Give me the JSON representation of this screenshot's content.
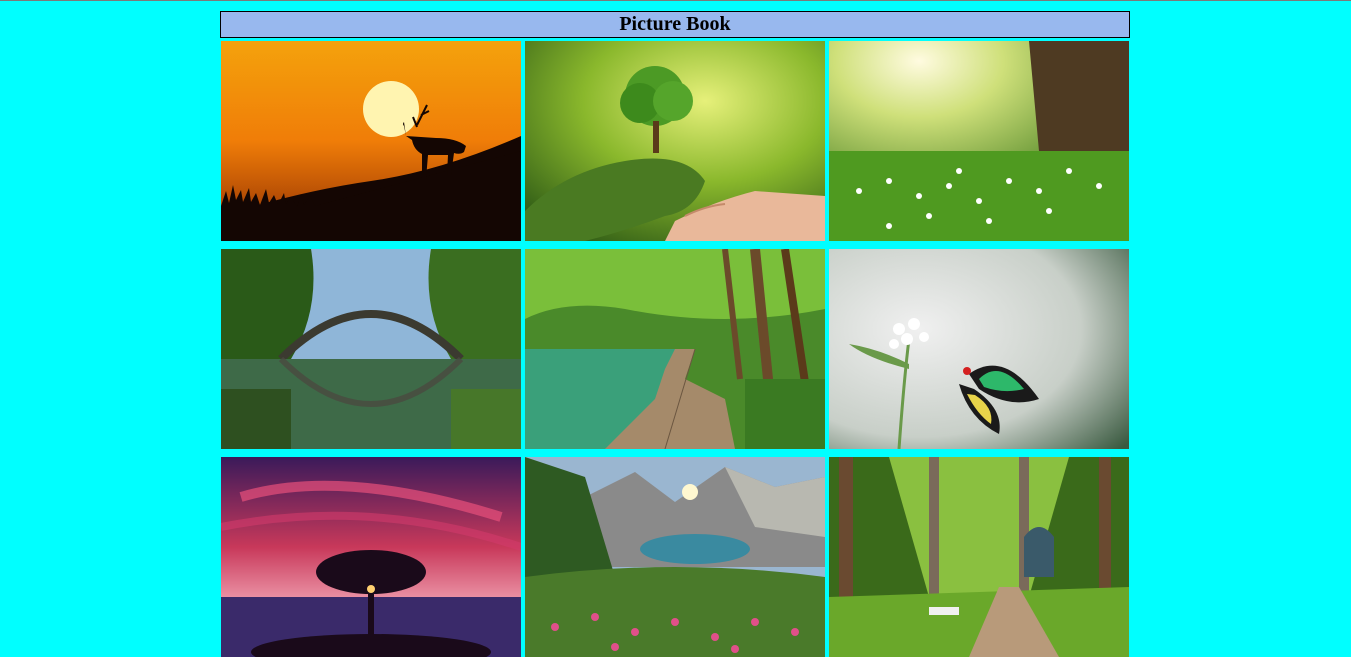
{
  "page": {
    "title": "Picture Book"
  },
  "gallery": {
    "images": [
      {
        "subject": "deer-silhouette-sunset"
      },
      {
        "subject": "tree-in-mossy-hand"
      },
      {
        "subject": "sunlit-meadow-flowers"
      },
      {
        "subject": "arched-bridge-reflection"
      },
      {
        "subject": "wooden-boardwalk-lake"
      },
      {
        "subject": "butterfly-on-flower"
      },
      {
        "subject": "lone-tree-red-sky"
      },
      {
        "subject": "mountain-lake-valley"
      },
      {
        "subject": "park-path-trees"
      }
    ]
  }
}
